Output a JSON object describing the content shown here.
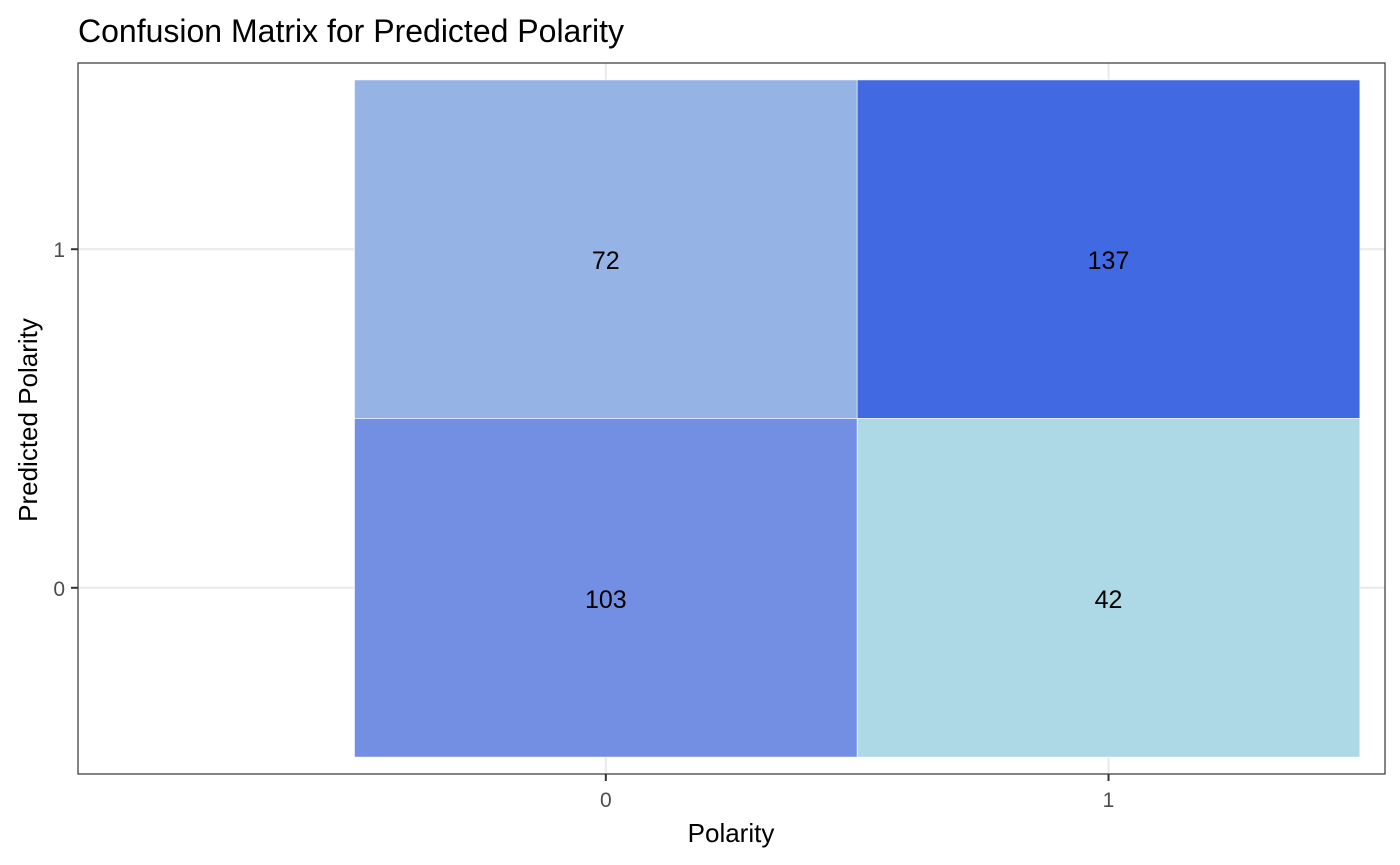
{
  "chart_data": {
    "type": "heatmap",
    "title": "Confusion Matrix for Predicted Polarity",
    "xlabel": "Polarity",
    "ylabel": "Predicted Polarity",
    "x_categories": [
      "0",
      "1"
    ],
    "y_categories": [
      "0",
      "1"
    ],
    "cells": [
      {
        "x": "0",
        "y": "1",
        "value": 72,
        "label": "72",
        "color": "#95B4E5"
      },
      {
        "x": "1",
        "y": "1",
        "value": 137,
        "label": "137",
        "color": "#4169E1"
      },
      {
        "x": "0",
        "y": "0",
        "value": 103,
        "label": "103",
        "color": "#738FE3"
      },
      {
        "x": "1",
        "y": "0",
        "value": 42,
        "label": "42",
        "color": "#ADD8E6"
      }
    ],
    "grid": true,
    "legend": "none"
  }
}
